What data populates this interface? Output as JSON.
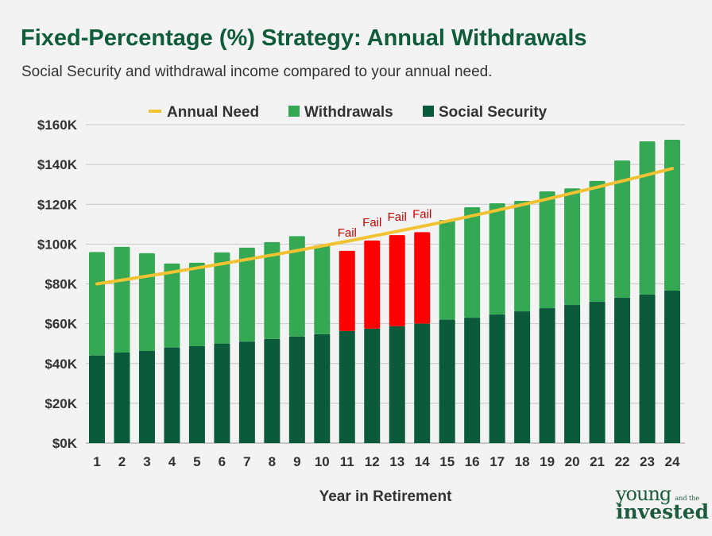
{
  "chart_data": {
    "type": "bar",
    "title": "Fixed-Percentage (%) Strategy: Annual Withdrawals",
    "subtitle": "Social Security and withdrawal income compared to your annual need.",
    "xlabel": "Year in Retirement",
    "ylabel": "",
    "ylim": [
      0,
      160
    ],
    "y_ticks": [
      "$0K",
      "$20K",
      "$40K",
      "$60K",
      "$80K",
      "$100K",
      "$120K",
      "$140K",
      "$160K"
    ],
    "categories": [
      "1",
      "2",
      "3",
      "4",
      "5",
      "6",
      "7",
      "8",
      "9",
      "10",
      "11",
      "12",
      "13",
      "14",
      "15",
      "16",
      "17",
      "18",
      "19",
      "20",
      "21",
      "22",
      "23",
      "24"
    ],
    "legend": {
      "position": "top",
      "entries": [
        "Annual Need",
        "Withdrawals",
        "Social Security"
      ]
    },
    "series": [
      {
        "name": "Social Security",
        "type": "stacked-bar",
        "color": "#0b5a3c",
        "values": [
          44,
          45.5,
          46.3,
          48,
          48.7,
          50,
          51,
          52.3,
          53.5,
          54.7,
          56.3,
          57.5,
          58.7,
          60,
          62,
          63,
          64.6,
          66.2,
          67.8,
          69.4,
          71,
          73,
          74.6,
          76.6
        ]
      },
      {
        "name": "Withdrawals",
        "type": "stacked-bar",
        "color": "#34a853",
        "fail_color": "#ff0000",
        "values": [
          52,
          53.1,
          49.1,
          42.2,
          41.9,
          45.8,
          47.2,
          48.7,
          50.5,
          44.7,
          40.3,
          44.3,
          45.8,
          46,
          50,
          55.5,
          55.9,
          55.5,
          58.7,
          58.6,
          60.7,
          69,
          77,
          75.8
        ]
      },
      {
        "name": "Annual Need",
        "type": "line",
        "color": "#f1c232",
        "values": [
          80,
          81.9,
          83.9,
          85.9,
          88,
          90.1,
          92.3,
          94.5,
          96.7,
          99.1,
          101.4,
          103.9,
          106.4,
          108.9,
          111.5,
          114.2,
          117,
          119.8,
          122.6,
          125.6,
          128.6,
          131.7,
          134.8,
          138
        ]
      }
    ],
    "fail_years": [
      "11",
      "12",
      "13",
      "14"
    ],
    "annotation_text": "Fail",
    "grid": true
  },
  "logo": {
    "line1": "young",
    "line1_small": "and the",
    "line2": "invested"
  }
}
